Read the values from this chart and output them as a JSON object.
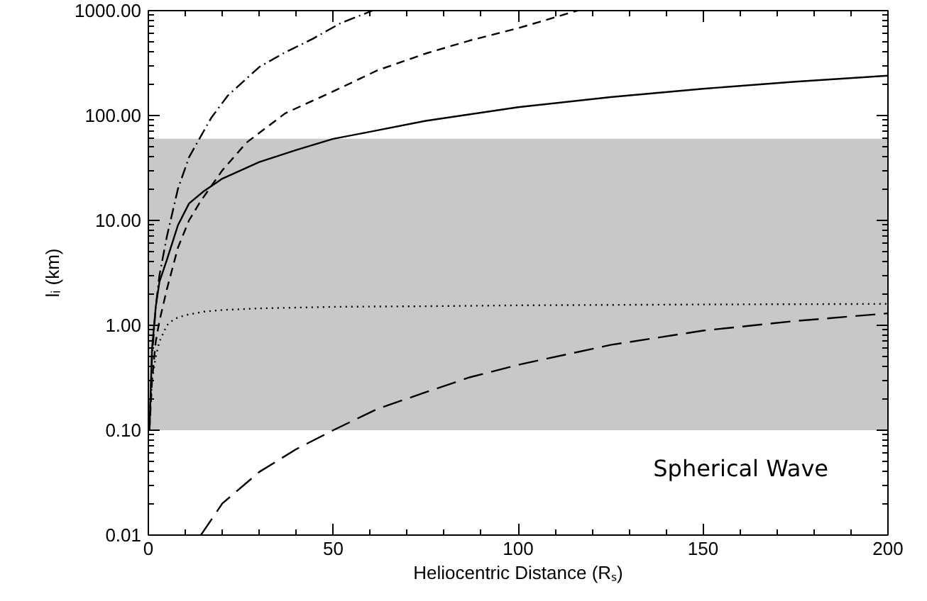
{
  "chart_data": {
    "type": "line",
    "xlabel": "Heliocentric Distance (Rₛ)",
    "ylabel": "lᵢ (km)",
    "log": "y",
    "xlim": [
      0,
      200
    ],
    "xticks": [
      0,
      50,
      100,
      150,
      200
    ],
    "ylim": [
      0.01,
      1000
    ],
    "yticks": [
      0.01,
      {
        "value": 0.1,
        "label": "0.10"
      },
      {
        "value": 1,
        "label": "1.00"
      },
      {
        "value": 10,
        "label": "10.00"
      },
      {
        "value": 100,
        "label": "100.00"
      },
      {
        "value": 1000,
        "label": "1000.00"
      }
    ],
    "grid": false,
    "bands": [
      {
        "axis": "y",
        "from": 0.1,
        "to": 60,
        "color": "#c8c8c8"
      }
    ],
    "annotations": [
      "Spherical Wave"
    ],
    "series": [
      {
        "color": "#000000",
        "line_style": "solid",
        "x": [
          0.3,
          1,
          2,
          3,
          5,
          8,
          11,
          15,
          20,
          25,
          30,
          40,
          50,
          60,
          75,
          100,
          125,
          150,
          175,
          200
        ],
        "values": [
          0.1,
          0.6,
          1.5,
          2.6,
          4.2,
          9,
          14.5,
          19,
          25,
          30,
          36,
          47,
          60,
          70,
          89,
          120,
          150,
          180,
          210,
          240
        ]
      },
      {
        "color": "#000000",
        "line_style": "dashdot",
        "x": [
          0.3,
          1,
          2,
          3,
          5,
          8,
          11,
          13.8,
          17,
          21.5,
          30,
          37,
          44.5,
          52,
          60.6
        ],
        "values": [
          0.1,
          0.5,
          1.5,
          3,
          7,
          20,
          40,
          60,
          95,
          155,
          290,
          400,
          540,
          760,
          1000
        ]
      },
      {
        "color": "#000000",
        "line_style": "dashed",
        "x": [
          0.3,
          1,
          2,
          3,
          5,
          8,
          11,
          14,
          20,
          26.5,
          37,
          50,
          62,
          75,
          87,
          100,
          116
        ],
        "values": [
          0.1,
          0.3,
          0.7,
          1.1,
          2.2,
          5.5,
          10,
          15,
          30,
          55,
          105,
          170,
          270,
          390,
          520,
          680,
          1000
        ]
      },
      {
        "color": "#000000",
        "line_style": "dotted",
        "x": [
          0.2,
          1,
          2,
          3,
          5,
          7,
          10,
          15,
          20,
          30,
          50,
          75,
          100,
          150,
          200
        ],
        "values": [
          0.1,
          0.3,
          0.5,
          0.7,
          1.0,
          1.15,
          1.25,
          1.35,
          1.4,
          1.45,
          1.5,
          1.52,
          1.55,
          1.58,
          1.6
        ]
      },
      {
        "color": "#000000",
        "line_style": "longdash",
        "x": [
          14.2,
          20,
          30,
          40,
          50,
          62,
          75,
          87,
          100,
          125,
          150,
          175,
          200
        ],
        "values": [
          0.01,
          0.02,
          0.04,
          0.066,
          0.1,
          0.16,
          0.23,
          0.32,
          0.42,
          0.65,
          0.89,
          1.1,
          1.3
        ]
      }
    ]
  }
}
